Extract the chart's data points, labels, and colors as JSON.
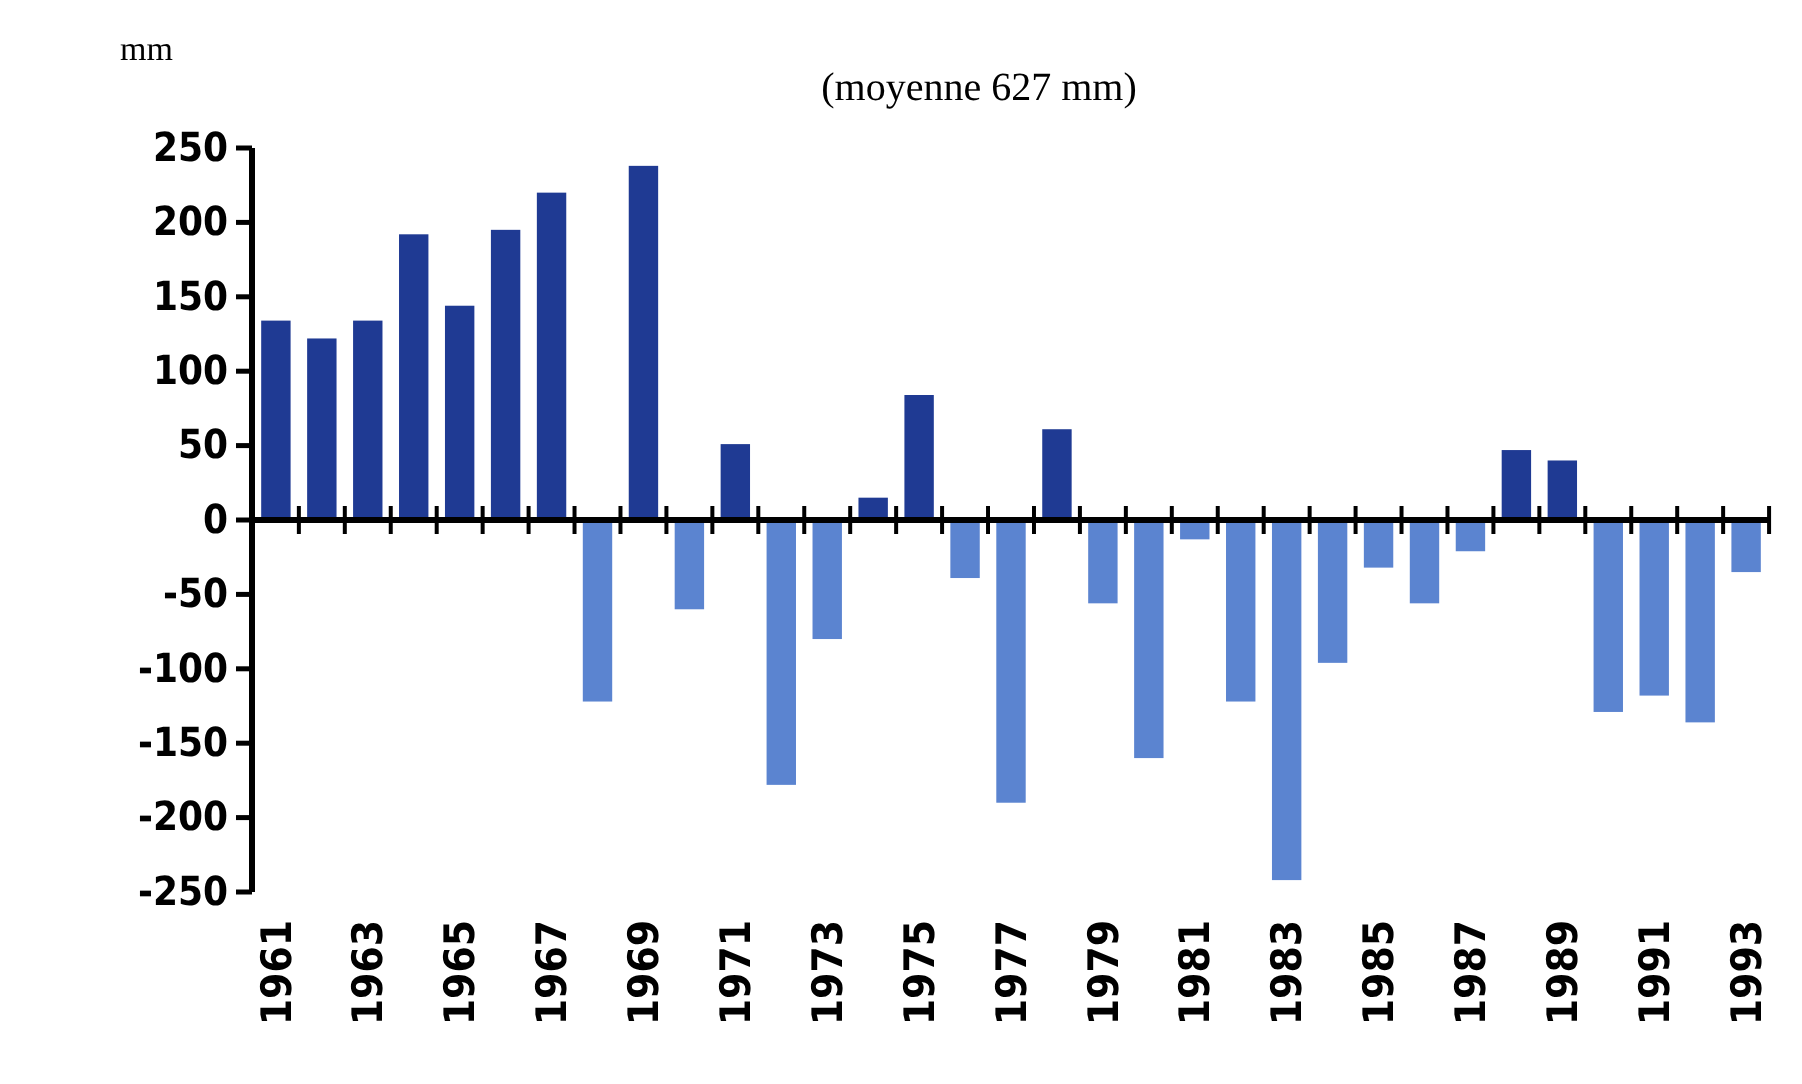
{
  "chart_data": {
    "type": "bar",
    "subtitle": "(moyenne 627 mm)",
    "ylabel": "mm",
    "categories": [
      "1961",
      null,
      "1963",
      null,
      "1965",
      null,
      "1967",
      null,
      "1969",
      null,
      "1971",
      null,
      "1973",
      null,
      "1975",
      null,
      "1977",
      null,
      "1979",
      null,
      "1981",
      null,
      "1983",
      null,
      "1985",
      null,
      "1987",
      null,
      "1989",
      null,
      "1991",
      null,
      "1993"
    ],
    "values": [
      134,
      122,
      134,
      192,
      144,
      195,
      220,
      -122,
      238,
      -60,
      51,
      -178,
      -80,
      15,
      84,
      -39,
      -190,
      61,
      -56,
      -160,
      -13,
      -122,
      -242,
      -96,
      -32,
      -56,
      -21,
      47,
      40,
      -129,
      -118,
      -136,
      -35
    ],
    "colors": [
      "#1f3a93",
      "#1f3a93",
      "#1f3a93",
      "#1f3a93",
      "#1f3a93",
      "#1f3a93",
      "#1f3a93",
      "#5b84d0",
      "#1f3a93",
      "#5b84d0",
      "#1f3a93",
      "#5b84d0",
      "#5b84d0",
      "#1f3a93",
      "#1f3a93",
      "#5b84d0",
      "#5b84d0",
      "#1f3a93",
      "#5b84d0",
      "#5b84d0",
      "#5b84d0",
      "#5b84d0",
      "#5b84d0",
      "#5b84d0",
      "#5b84d0",
      "#5b84d0",
      "#5b84d0",
      "#1f3a93",
      "#1f3a93",
      "#5b84d0",
      "#5b84d0",
      "#5b84d0",
      "#5b84d0"
    ],
    "ylim": [
      -250,
      250
    ],
    "yticks": [
      -250,
      -200,
      -150,
      -100,
      -50,
      0,
      50,
      100,
      150,
      200,
      250
    ]
  }
}
